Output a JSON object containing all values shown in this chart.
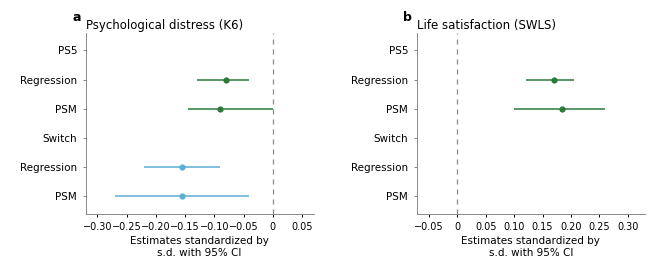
{
  "panel_a": {
    "title": "Psychological distress (K6)",
    "xlabel": "Estimates standardized by\ns.d. with 95% CI",
    "xlim": [
      -0.32,
      0.07
    ],
    "xticks": [
      -0.3,
      -0.25,
      -0.2,
      -0.15,
      -0.1,
      -0.05,
      0.0,
      0.05
    ],
    "xtick_labels": [
      "−0.30",
      "−0.25",
      "−0.20",
      "−0.15",
      "−0.10",
      "−0.05",
      "0",
      "0.05"
    ],
    "vline": 0.0,
    "rows": [
      {
        "label": "PS5",
        "est": null,
        "ci_lo": null,
        "ci_hi": null,
        "color": null,
        "y": 5
      },
      {
        "label": "Regression",
        "est": -0.08,
        "ci_lo": -0.13,
        "ci_hi": -0.04,
        "color": "#2a7a3b",
        "y": 4
      },
      {
        "label": "PSM",
        "est": -0.09,
        "ci_lo": -0.145,
        "ci_hi": 0.0,
        "color": "#2a7a3b",
        "y": 3
      },
      {
        "label": "Switch",
        "est": null,
        "ci_lo": null,
        "ci_hi": null,
        "color": null,
        "y": 2
      },
      {
        "label": "Regression",
        "est": -0.155,
        "ci_lo": -0.22,
        "ci_hi": -0.09,
        "color": "#5bafd6",
        "y": 1
      },
      {
        "label": "PSM",
        "est": -0.155,
        "ci_lo": -0.27,
        "ci_hi": -0.04,
        "color": "#5bafd6",
        "y": 0
      }
    ]
  },
  "panel_b": {
    "title": "Life satisfaction (SWLS)",
    "xlabel": "Estimates standardized by\ns.d. with 95% CI",
    "xlim": [
      -0.072,
      0.33
    ],
    "xticks": [
      -0.05,
      0.0,
      0.05,
      0.1,
      0.15,
      0.2,
      0.25,
      0.3
    ],
    "xtick_labels": [
      "−0.05",
      "0",
      "0.05",
      "0.10",
      "0.15",
      "0.20",
      "0.25",
      "0.30"
    ],
    "vline": 0.0,
    "rows": [
      {
        "label": "PS5",
        "est": null,
        "ci_lo": null,
        "ci_hi": null,
        "color": null,
        "y": 5
      },
      {
        "label": "Regression",
        "est": 0.17,
        "ci_lo": 0.12,
        "ci_hi": 0.205,
        "color": "#2a7a3b",
        "y": 4
      },
      {
        "label": "PSM",
        "est": 0.185,
        "ci_lo": 0.1,
        "ci_hi": 0.26,
        "color": "#2a7a3b",
        "y": 3
      },
      {
        "label": "Switch",
        "est": null,
        "ci_lo": null,
        "ci_hi": null,
        "color": null,
        "y": 2
      },
      {
        "label": "Regression",
        "est": null,
        "ci_lo": null,
        "ci_hi": null,
        "color": null,
        "y": 1
      },
      {
        "label": "PSM",
        "est": null,
        "ci_lo": null,
        "ci_hi": null,
        "color": null,
        "y": 0
      }
    ]
  },
  "label_a": "a",
  "label_b": "b",
  "bg_color": "#ffffff",
  "spine_color": "#888888",
  "dashed_line_color": "#888888",
  "marker_size": 4.5,
  "linewidth": 1.1,
  "tick_fontsize": 7,
  "xlabel_fontsize": 7.5,
  "title_fontsize": 8.5,
  "ytick_fontsize": 7.5,
  "panel_label_fontsize": 9
}
